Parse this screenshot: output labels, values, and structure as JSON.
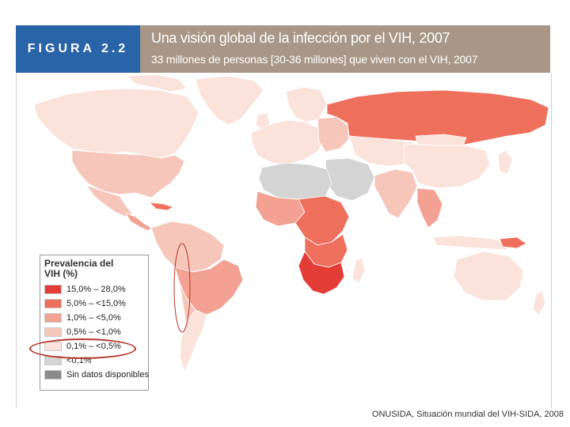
{
  "header": {
    "figure_label": "FIGURA 2.2",
    "title": "Una visión global de la infección por el VIH, 2007",
    "subtitle": "33 millones de personas [30-36 millones] que viven con el VIH, 2007"
  },
  "legend": {
    "title_line1": "Prevalencia del",
    "title_line2": "VIH (%)",
    "items": [
      {
        "label": "15,0% – 28,0%",
        "color": "#e33b36"
      },
      {
        "label": "5,0% – <15,0%",
        "color": "#ef6f5d"
      },
      {
        "label": "1,0% – <5,0%",
        "color": "#f3a193"
      },
      {
        "label": "0,5% – <1,0%",
        "color": "#f7c6bb"
      },
      {
        "label": "0,1% – <0,5%",
        "color": "#fbe3dc"
      },
      {
        "label": "<0,1%",
        "color": "#d4d4d4"
      },
      {
        "label": "Sin datos disponibles",
        "color": "#8a8a8a"
      }
    ]
  },
  "colors": {
    "figure_box": "#2a64a8",
    "title_box": "#a89787",
    "highlight": "#b5352a",
    "border": "#ffffff"
  },
  "footer": {
    "source": "ONUSIDA, Situación mundial del VIH-SIDA, 2008"
  }
}
